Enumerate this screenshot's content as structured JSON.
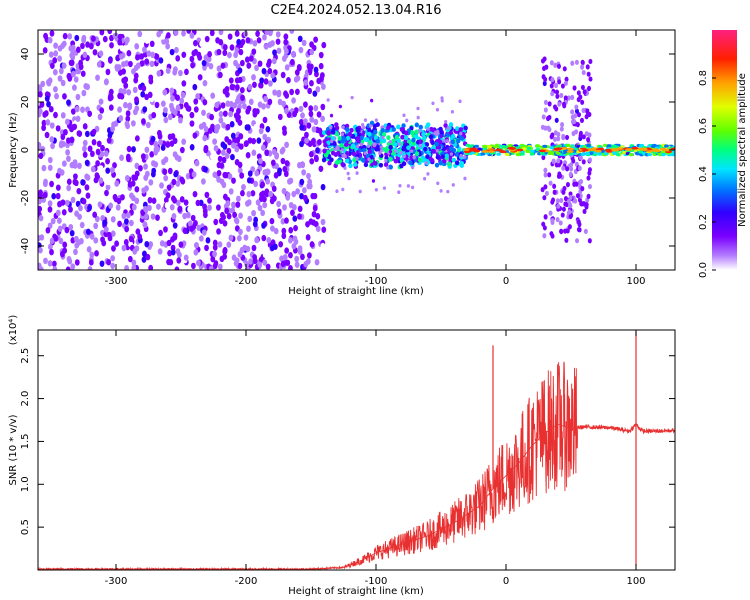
{
  "title": "C2E4.2024.052.13.04.R16",
  "chart_data": [
    {
      "type": "heatmap",
      "xlabel": "Height of straight line (km)",
      "ylabel": "Frequency (Hz)",
      "xlim": [
        -360,
        130
      ],
      "ylim": [
        -50,
        50
      ],
      "xticks": [
        -300,
        -200,
        -100,
        0,
        100
      ],
      "yticks": [
        -40,
        -20,
        0,
        20,
        40
      ],
      "colorbar": {
        "label": "Normalized spectral amplitude",
        "range": [
          0.0,
          1.0
        ],
        "ticks": [
          "0.0",
          "0.2",
          "0.4",
          "0.6",
          "0.8"
        ],
        "colors": [
          "#ffffff",
          "#b37dff",
          "#7a00ff",
          "#3000ff",
          "#0070ff",
          "#00e5ff",
          "#00ff80",
          "#60ff00",
          "#e0ff00",
          "#ffa000",
          "#ff2000",
          "#ff2080"
        ]
      },
      "regions": [
        {
          "x": [
            -360,
            -140
          ],
          "freq_spread": 50,
          "level": 0.2,
          "description_level": "noise"
        },
        {
          "x": [
            -140,
            -30
          ],
          "freq_center": 2,
          "freq_spread": 6,
          "level": 0.45
        },
        {
          "x": [
            -30,
            130
          ],
          "freq_center": 0,
          "freq_spread": 2,
          "level": 0.75
        },
        {
          "x": [
            28,
            65
          ],
          "freq_spread": 38,
          "level": 0.18
        }
      ]
    },
    {
      "type": "line",
      "xlabel": "Height of straight line (km)",
      "ylabel": "SNR (10 * v/v)",
      "y_scale_note": "(x10⁴)",
      "xlim": [
        -360,
        130
      ],
      "ylim": [
        0,
        2.8
      ],
      "xticks": [
        -300,
        -200,
        -100,
        0,
        100
      ],
      "yticks": [
        "0.5",
        "1.0",
        "1.5",
        "2.0",
        "2.5"
      ],
      "series": [
        {
          "color": "#e83030",
          "x": [
            -360,
            -300,
            -200,
            -150,
            -125,
            -110,
            -100,
            -80,
            -60,
            -40,
            -20,
            -10,
            0,
            10,
            20,
            30,
            40,
            50,
            60,
            80,
            95,
            100,
            105,
            115,
            130
          ],
          "y": [
            0.01,
            0.01,
            0.01,
            0.01,
            0.03,
            0.12,
            0.2,
            0.3,
            0.4,
            0.55,
            0.75,
            0.95,
            1.1,
            1.25,
            1.45,
            1.6,
            1.7,
            1.65,
            1.67,
            1.66,
            1.62,
            1.7,
            1.62,
            1.62,
            1.63
          ]
        }
      ],
      "spikes": [
        {
          "x": -10,
          "y": 2.62
        },
        {
          "x": 45,
          "y": 2.05
        },
        {
          "x": 100,
          "y": 2.78
        },
        {
          "x": 100,
          "y": 0.05
        }
      ]
    }
  ]
}
